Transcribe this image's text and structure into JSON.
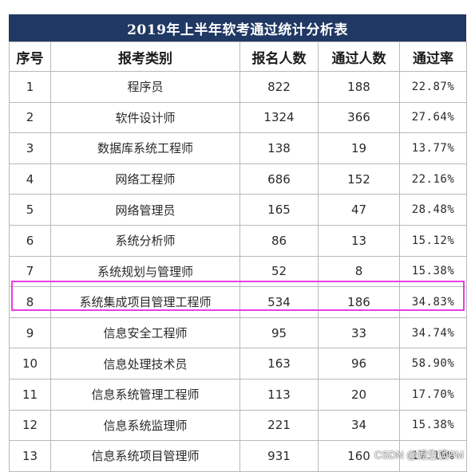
{
  "title": "2019年上半年软考通过统计分析表",
  "headers": [
    "序号",
    "报考类别",
    "报名人数",
    "通过人数",
    "通过率"
  ],
  "rows": [
    {
      "no": "1",
      "category": "程序员",
      "registered": "822",
      "passed": "188",
      "rate": "22.87%"
    },
    {
      "no": "2",
      "category": "软件设计师",
      "registered": "1324",
      "passed": "366",
      "rate": "27.64%"
    },
    {
      "no": "3",
      "category": "数据库系统工程师",
      "registered": "138",
      "passed": "19",
      "rate": "13.77%"
    },
    {
      "no": "4",
      "category": "网络工程师",
      "registered": "686",
      "passed": "152",
      "rate": "22.16%"
    },
    {
      "no": "5",
      "category": "网络管理员",
      "registered": "165",
      "passed": "47",
      "rate": "28.48%"
    },
    {
      "no": "6",
      "category": "系统分析师",
      "registered": "86",
      "passed": "13",
      "rate": "15.12%"
    },
    {
      "no": "7",
      "category": "系统规划与管理师",
      "registered": "52",
      "passed": "8",
      "rate": "15.38%"
    },
    {
      "no": "8",
      "category": "系统集成项目管理工程师",
      "registered": "534",
      "passed": "186",
      "rate": "34.83%"
    },
    {
      "no": "9",
      "category": "信息安全工程师",
      "registered": "95",
      "passed": "33",
      "rate": "34.74%"
    },
    {
      "no": "10",
      "category": "信息处理技术员",
      "registered": "163",
      "passed": "96",
      "rate": "58.90%"
    },
    {
      "no": "11",
      "category": "信息系统管理工程师",
      "registered": "113",
      "passed": "20",
      "rate": "17.70%"
    },
    {
      "no": "12",
      "category": "信息系统监理师",
      "registered": "221",
      "passed": "34",
      "rate": "15.38%"
    },
    {
      "no": "13",
      "category": "信息系统项目管理师",
      "registered": "931",
      "passed": "160",
      "rate": "17.19%"
    }
  ],
  "watermark": "CSDN @遮生谈PM",
  "colors": {
    "title_bg": "#203864",
    "highlight": "#e93ee0"
  }
}
